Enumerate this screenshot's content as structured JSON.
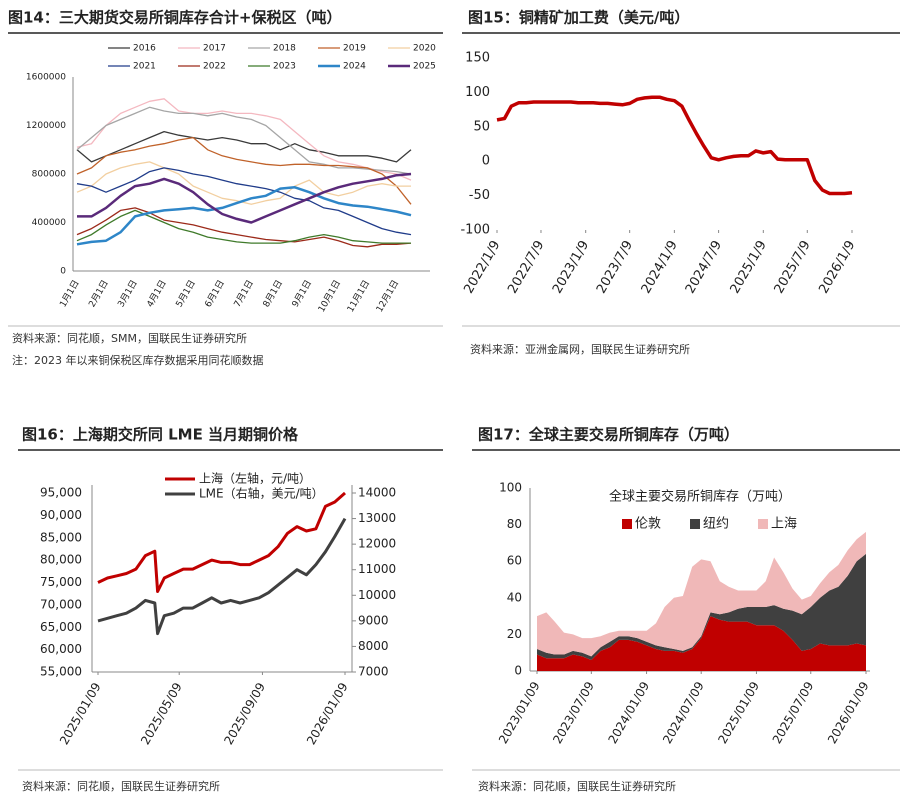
{
  "chart_data": [
    {
      "type": "line",
      "title": "图14：三大期货交易所铜库存合计+保税区（吨）",
      "source": "资料来源：同花顺，SMM，国联民生证券研究所",
      "note": "注：2023 年以来铜保税区库存数据采用同花顺数据",
      "categories": [
        "1月1日",
        null,
        "2月1日",
        null,
        "3月1日",
        null,
        "4月1日",
        null,
        "5月1日",
        null,
        "6月1日",
        null,
        "7月1日",
        null,
        "8月1日",
        null,
        "9月1日",
        null,
        "10月1日",
        null,
        "11月1日",
        null,
        "12月1日",
        null
      ],
      "ylim": [
        0,
        1600000
      ],
      "yticks": [
        0,
        400000,
        800000,
        1200000,
        1600000
      ],
      "series": [
        {
          "name": "2016",
          "color": "#3a3a3a",
          "values": [
            1000000,
            900000,
            950000,
            1000000,
            1050000,
            1100000,
            1150000,
            1120000,
            1100000,
            1080000,
            1100000,
            1080000,
            1050000,
            1050000,
            1000000,
            1050000,
            1000000,
            980000,
            950000,
            950000,
            950000,
            930000,
            900000,
            1000000
          ]
        },
        {
          "name": "2017",
          "color": "#f4b8c0",
          "values": [
            1020000,
            1050000,
            1200000,
            1300000,
            1350000,
            1400000,
            1420000,
            1320000,
            1300000,
            1300000,
            1320000,
            1300000,
            1300000,
            1280000,
            1250000,
            1150000,
            1050000,
            950000,
            900000,
            880000,
            850000,
            820000,
            800000,
            750000
          ]
        },
        {
          "name": "2018",
          "color": "#a6a6a6",
          "values": [
            1000000,
            1100000,
            1200000,
            1250000,
            1300000,
            1350000,
            1320000,
            1300000,
            1300000,
            1280000,
            1300000,
            1270000,
            1250000,
            1200000,
            1100000,
            1000000,
            900000,
            880000,
            850000,
            850000,
            840000,
            830000,
            820000,
            800000
          ]
        },
        {
          "name": "2019",
          "color": "#c0622a",
          "values": [
            800000,
            850000,
            950000,
            980000,
            1000000,
            1030000,
            1050000,
            1080000,
            1100000,
            1000000,
            950000,
            920000,
            900000,
            880000,
            870000,
            880000,
            880000,
            870000,
            870000,
            860000,
            850000,
            800000,
            700000,
            550000
          ]
        },
        {
          "name": "2020",
          "color": "#f2cfa0",
          "values": [
            650000,
            700000,
            800000,
            850000,
            880000,
            900000,
            850000,
            800000,
            700000,
            650000,
            600000,
            580000,
            550000,
            580000,
            600000,
            700000,
            750000,
            650000,
            620000,
            650000,
            700000,
            720000,
            700000,
            700000
          ]
        },
        {
          "name": "2021",
          "color": "#203c8a",
          "values": [
            720000,
            700000,
            650000,
            700000,
            750000,
            820000,
            850000,
            830000,
            800000,
            780000,
            750000,
            720000,
            700000,
            680000,
            650000,
            600000,
            580000,
            520000,
            500000,
            450000,
            400000,
            350000,
            320000,
            300000
          ]
        },
        {
          "name": "2022",
          "color": "#9c2a1a",
          "values": [
            300000,
            350000,
            420000,
            500000,
            520000,
            480000,
            420000,
            400000,
            380000,
            350000,
            320000,
            300000,
            280000,
            260000,
            250000,
            240000,
            260000,
            280000,
            250000,
            210000,
            200000,
            220000,
            220000,
            230000
          ]
        },
        {
          "name": "2023",
          "color": "#3f7a2a",
          "values": [
            250000,
            300000,
            380000,
            450000,
            500000,
            450000,
            400000,
            350000,
            320000,
            280000,
            260000,
            240000,
            230000,
            230000,
            230000,
            250000,
            280000,
            300000,
            280000,
            250000,
            240000,
            230000,
            230000,
            230000
          ]
        },
        {
          "name": "2024",
          "color": "#2e86c8",
          "line_width": 2.5,
          "values": [
            220000,
            240000,
            250000,
            320000,
            450000,
            480000,
            500000,
            510000,
            520000,
            500000,
            520000,
            560000,
            600000,
            620000,
            680000,
            690000,
            650000,
            600000,
            560000,
            540000,
            530000,
            510000,
            490000,
            460000
          ]
        },
        {
          "name": "2025",
          "color": "#5a2a7a",
          "line_width": 2.5,
          "values": [
            450000,
            450000,
            520000,
            620000,
            700000,
            720000,
            760000,
            720000,
            650000,
            550000,
            470000,
            430000,
            400000,
            450000,
            500000,
            550000,
            600000,
            650000,
            690000,
            720000,
            740000,
            760000,
            790000,
            800000
          ]
        }
      ]
    },
    {
      "type": "line",
      "title": "图15：铜精矿加工费（美元/吨）",
      "source": "资料来源：亚洲金属网，国联民生证券研究所",
      "x": [
        "2022/1/9",
        "2022/2/9",
        "2022/3/9",
        "2022/4/9",
        "2022/5/9",
        "2022/6/9",
        "2022/7/9",
        "2022/8/9",
        "2022/9/9",
        "2022/10/9",
        "2022/11/9",
        "2022/12/9",
        "2023/1/9",
        "2023/2/9",
        "2023/3/9",
        "2023/4/9",
        "2023/5/9",
        "2023/6/9",
        "2023/7/9",
        "2023/8/9",
        "2023/9/9",
        "2023/10/9",
        "2023/11/9",
        "2023/12/9",
        "2024/1/9",
        "2024/2/9",
        "2024/3/9",
        "2024/4/9",
        "2024/5/9",
        "2024/6/9",
        "2024/7/9",
        "2024/8/9",
        "2024/9/9",
        "2024/10/9",
        "2024/11/9",
        "2024/12/9",
        "2025/1/9",
        "2025/2/9",
        "2025/3/9",
        "2025/4/9",
        "2025/5/9",
        "2025/6/9",
        "2025/7/9",
        "2025/8/9",
        "2025/9/9",
        "2025/10/9",
        "2025/11/9",
        "2025/12/9",
        "2026/1/9"
      ],
      "xlim": [
        "2022/1/9",
        "2026/1/9"
      ],
      "xticks": [
        "2022/1/9",
        "2022/7/9",
        "2023/1/9",
        "2023/7/9",
        "2024/1/9",
        "2024/7/9",
        "2025/1/9",
        "2025/7/9",
        "2026/1/9"
      ],
      "ylim": [
        -100,
        150
      ],
      "yticks": [
        150,
        100,
        50,
        0,
        -50,
        -100
      ],
      "series": [
        {
          "name": "铜精矿加工费",
          "color": "#c00000",
          "line_width": 3.5,
          "values": [
            60,
            62,
            80,
            85,
            85,
            86,
            86,
            86,
            86,
            86,
            86,
            85,
            85,
            85,
            84,
            84,
            83,
            82,
            84,
            90,
            92,
            93,
            93,
            90,
            88,
            80,
            60,
            40,
            22,
            5,
            2,
            5,
            7,
            8,
            8,
            15,
            12,
            14,
            3,
            2,
            2,
            2,
            2,
            -28,
            -42,
            -47,
            -47,
            -47,
            -46
          ]
        }
      ]
    },
    {
      "type": "line",
      "title": "图16：上海期交所同 LME 当月期铜价格",
      "source": "资料来源：同花顺，国联民生证券研究所",
      "x": [
        "2025/01/09",
        "2025/01/23",
        "2025/02/06",
        "2025/02/20",
        "2025/03/06",
        "2025/03/20",
        "2025/04/03",
        "2025/04/07",
        "2025/04/17",
        "2025/05/01",
        "2025/05/15",
        "2025/05/29",
        "2025/06/12",
        "2025/06/26",
        "2025/07/10",
        "2025/07/24",
        "2025/08/07",
        "2025/08/21",
        "2025/09/04",
        "2025/09/18",
        "2025/10/02",
        "2025/10/16",
        "2025/10/30",
        "2025/11/13",
        "2025/11/27",
        "2025/12/11",
        "2025/12/25",
        "2026/01/09"
      ],
      "xlim": [
        "2025/01/09",
        "2026/01/09"
      ],
      "xticks": [
        "2025/01/09",
        "2025/05/09",
        "2025/09/09",
        "2026/01/09"
      ],
      "ylim": [
        55000,
        95000
      ],
      "yticks": [
        {
          "value": 95000,
          "label": "95,000"
        },
        {
          "value": 90000,
          "label": "90,000"
        },
        {
          "value": 85000,
          "label": "85,000"
        },
        {
          "value": 80000,
          "label": "80,000"
        },
        {
          "value": 75000,
          "label": "75,000"
        },
        {
          "value": 70000,
          "label": "70,000"
        },
        {
          "value": 65000,
          "label": "65,000"
        },
        {
          "value": 60000,
          "label": "60,000"
        },
        {
          "value": 55000,
          "label": "55,000"
        }
      ],
      "y2lim": [
        7000,
        14000
      ],
      "y2ticks": [
        14000,
        13000,
        12000,
        11000,
        10000,
        9000,
        8000,
        7000
      ],
      "series": [
        {
          "name": "上海（左轴，元/吨）",
          "color": "#c00000",
          "line_width": 3,
          "values": [
            75000,
            76000,
            76500,
            77000,
            78000,
            81000,
            82000,
            73000,
            76000,
            77000,
            78000,
            78000,
            79000,
            80000,
            79500,
            79500,
            79000,
            79000,
            80000,
            81000,
            83000,
            86000,
            87500,
            86500,
            87000,
            92000,
            93000,
            95000
          ]
        },
        {
          "name": "LME（右轴，美元/吨）",
          "color": "#404040",
          "line_width": 3,
          "axis": "y2",
          "values": [
            9000,
            9100,
            9200,
            9300,
            9500,
            9800,
            9700,
            8500,
            9200,
            9300,
            9500,
            9500,
            9700,
            9900,
            9700,
            9800,
            9700,
            9800,
            9900,
            10100,
            10400,
            10700,
            11000,
            10800,
            11200,
            11700,
            12300,
            13000
          ]
        }
      ]
    },
    {
      "type": "area",
      "stacked": true,
      "title": "图17：全球主要交易所铜库存（万吨）",
      "subtitle": "全球主要交易所铜库存（万吨）",
      "source": "资料来源：同花顺，国联民生证券研究所",
      "x": [
        "2023/01/09",
        "2023/02/09",
        "2023/03/09",
        "2023/04/09",
        "2023/05/09",
        "2023/06/09",
        "2023/07/09",
        "2023/08/09",
        "2023/09/09",
        "2023/10/09",
        "2023/11/09",
        "2023/12/09",
        "2024/01/09",
        "2024/02/09",
        "2024/03/09",
        "2024/04/09",
        "2024/05/09",
        "2024/06/09",
        "2024/07/09",
        "2024/08/09",
        "2024/09/09",
        "2024/10/09",
        "2024/11/09",
        "2024/12/09",
        "2025/01/09",
        "2025/02/09",
        "2025/03/09",
        "2025/04/09",
        "2025/05/09",
        "2025/06/09",
        "2025/07/09",
        "2025/08/09",
        "2025/09/09",
        "2025/10/09",
        "2025/11/09",
        "2025/12/09",
        "2026/01/09"
      ],
      "xlim": [
        "2023/01/09",
        "2026/01/09"
      ],
      "xticks": [
        "2023/01/09",
        "2023/07/09",
        "2024/01/09",
        "2024/07/09",
        "2025/01/09",
        "2025/07/09",
        "2026/01/09"
      ],
      "ylim": [
        0,
        100
      ],
      "yticks": [
        0,
        20,
        40,
        60,
        80,
        100
      ],
      "series": [
        {
          "name": "伦敦",
          "color": "#c00000",
          "values": [
            9,
            7,
            7,
            7,
            9,
            8,
            6,
            11,
            13,
            17,
            17,
            16,
            14,
            12,
            11,
            11,
            10,
            12,
            18,
            30,
            28,
            27,
            27,
            27,
            25,
            25,
            25,
            22,
            17,
            11,
            12,
            15,
            14,
            14,
            14,
            15,
            14
          ]
        },
        {
          "name": "纽约",
          "color": "#404040",
          "values": [
            3,
            3,
            2,
            2,
            2,
            2,
            2,
            2,
            3,
            2,
            2,
            2,
            2,
            2,
            2,
            1,
            1,
            1,
            1,
            2,
            3,
            5,
            7,
            8,
            10,
            10,
            11,
            12,
            16,
            20,
            23,
            25,
            30,
            32,
            38,
            45,
            50
          ]
        },
        {
          "name": "上海",
          "color": "#f0b8b8",
          "values": [
            18,
            22,
            18,
            12,
            9,
            8,
            10,
            6,
            5,
            3,
            3,
            4,
            6,
            12,
            22,
            28,
            30,
            44,
            42,
            28,
            18,
            14,
            10,
            9,
            9,
            14,
            26,
            20,
            12,
            8,
            6,
            8,
            10,
            12,
            14,
            12,
            12
          ]
        }
      ]
    }
  ]
}
